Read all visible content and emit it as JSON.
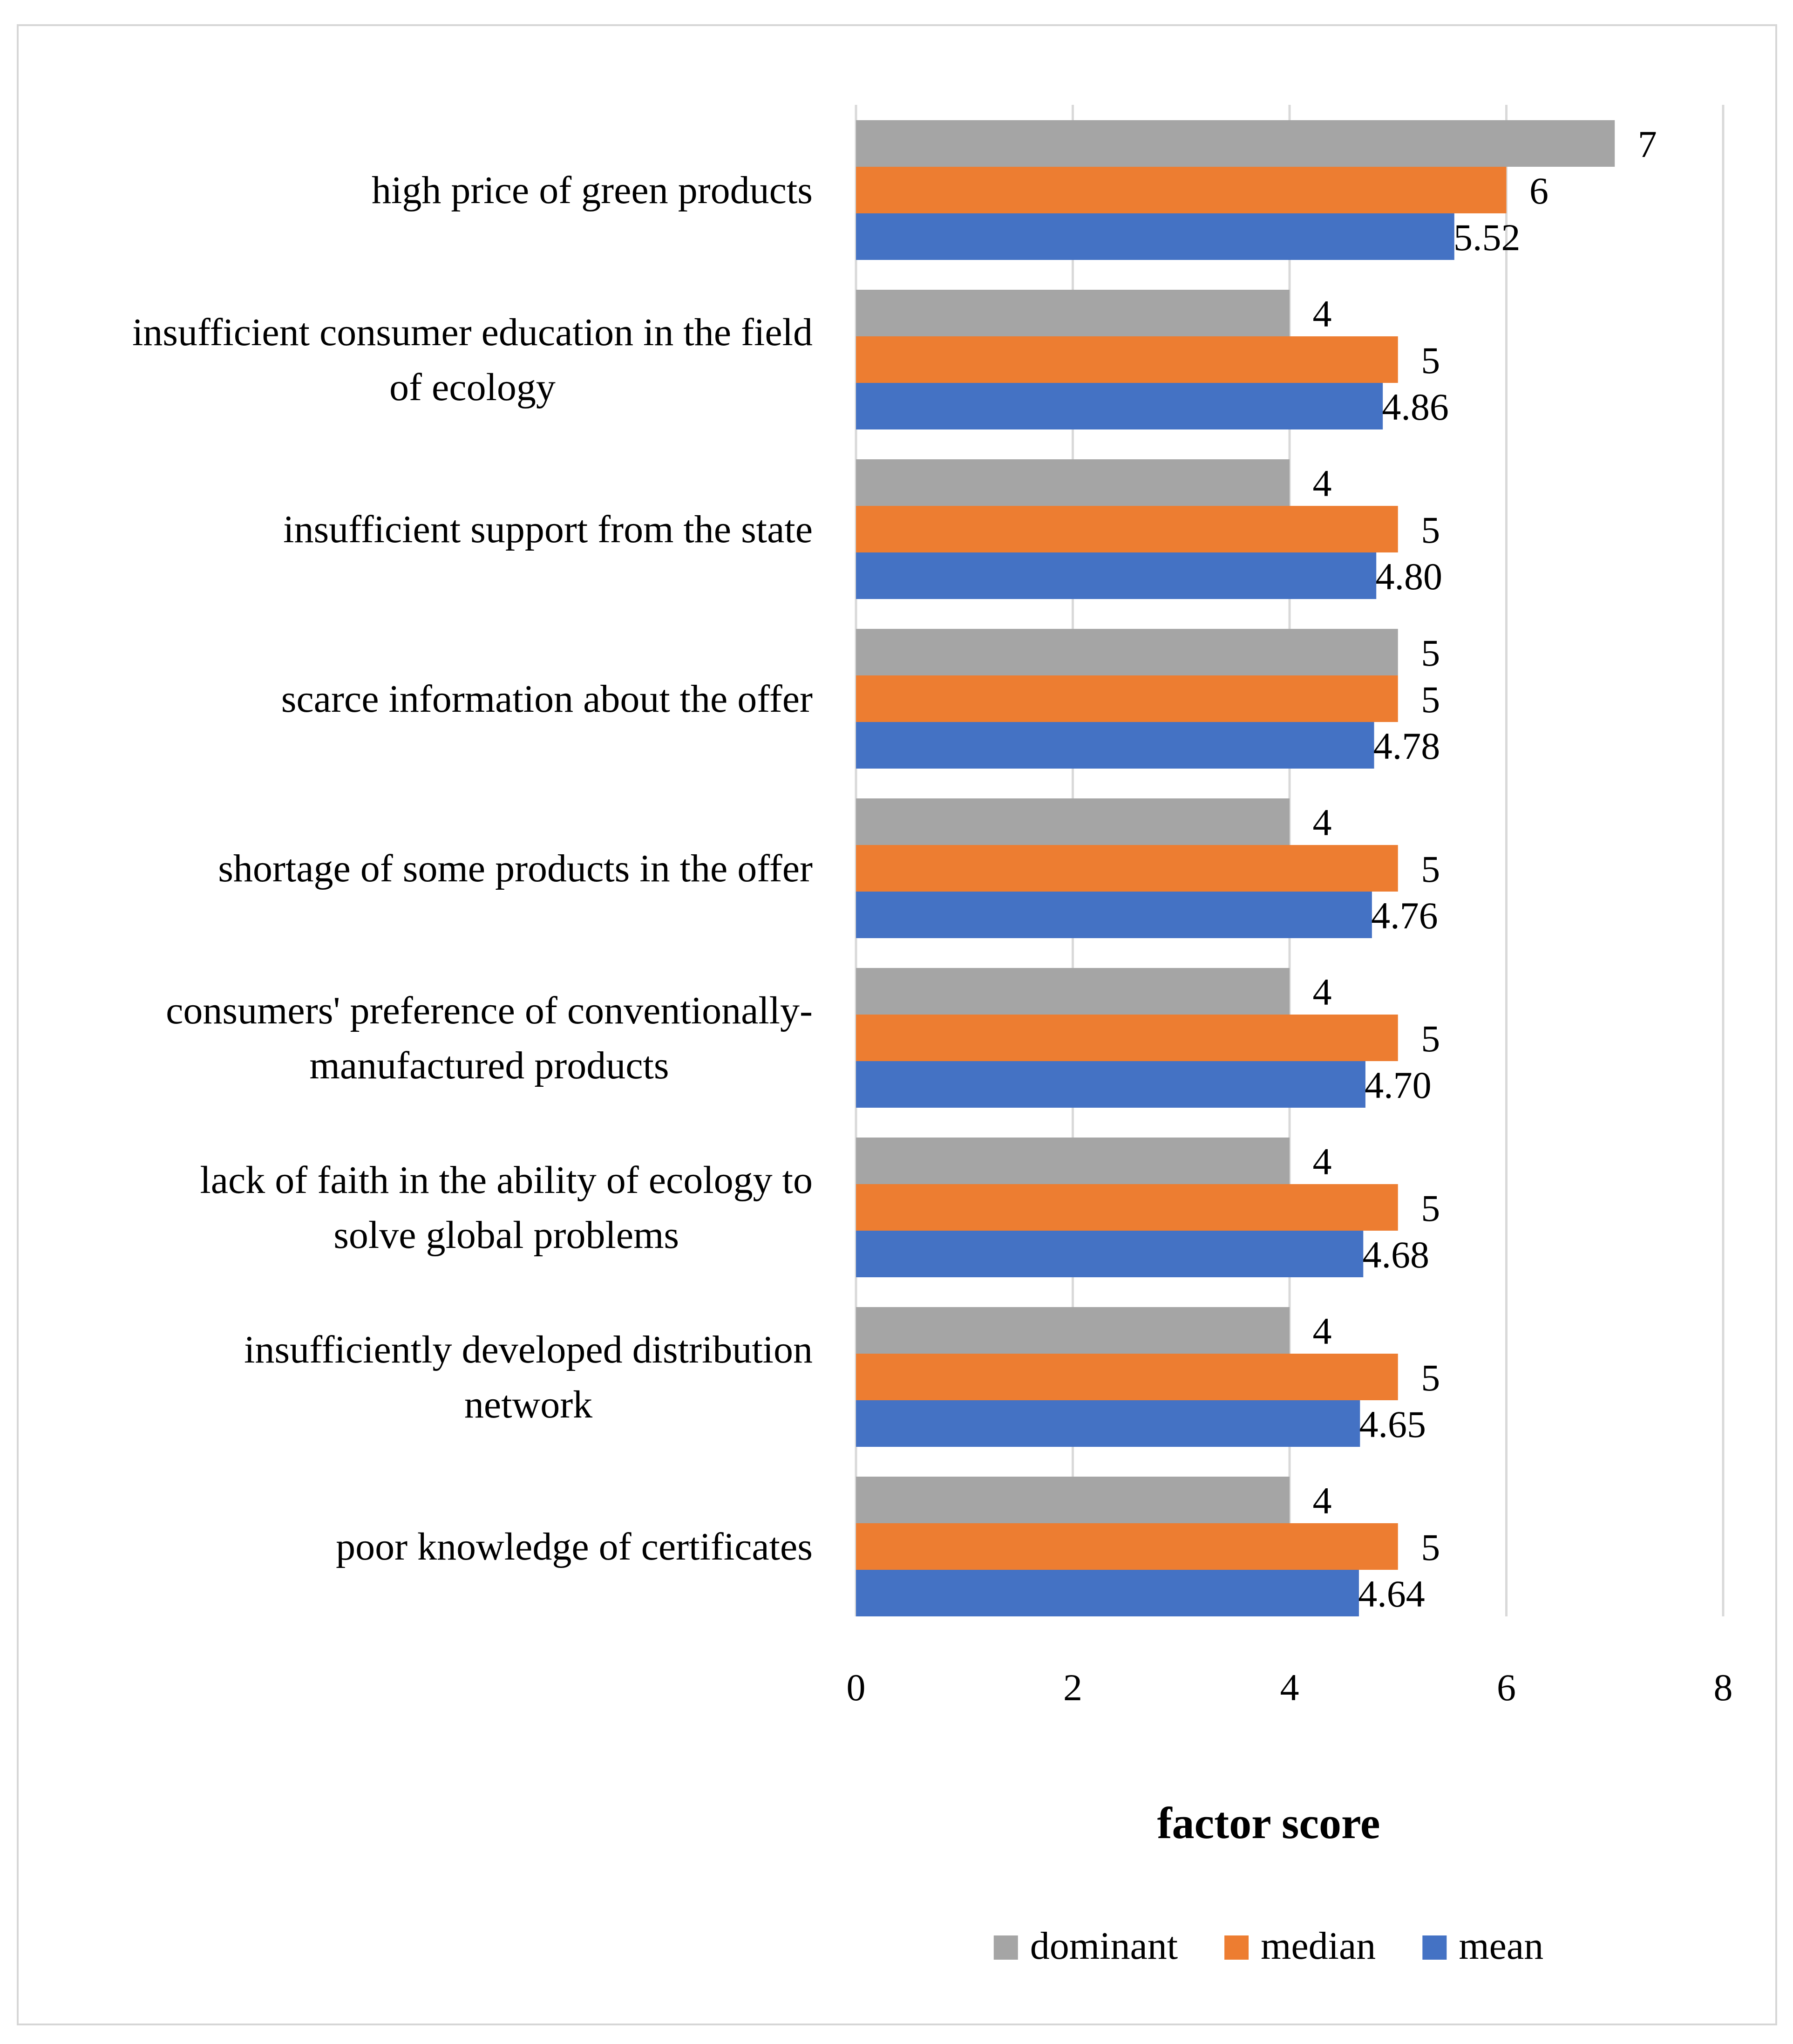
{
  "chart_data": {
    "type": "bar",
    "orientation": "horizontal",
    "categories": [
      "high price of green products",
      "insufficient consumer education in the field of ecology",
      "insufficient support from the state",
      "scarce information about the offer",
      "shortage of some products in the offer",
      "consumers' preference of conventionally-manufactured products",
      "lack of faith in the ability of ecology to solve global problems",
      "insufficiently developed distribution network",
      "poor knowledge of certificates"
    ],
    "category_lines": [
      [
        "high price of green products"
      ],
      [
        "insufficient consumer education in the field",
        "of ecology"
      ],
      [
        "insufficient support from the state"
      ],
      [
        "scarce information about the offer"
      ],
      [
        "shortage of some products in the offer"
      ],
      [
        "consumers' preference of conventionally-",
        "manufactured products"
      ],
      [
        "lack of faith in the ability of ecology to",
        "solve global problems"
      ],
      [
        "insufficiently developed distribution",
        "network"
      ],
      [
        "poor knowledge of certificates"
      ]
    ],
    "series": [
      {
        "name": "dominant",
        "color": "#a5a5a5",
        "values": [
          7,
          4,
          4,
          5,
          4,
          4,
          4,
          4,
          4
        ],
        "labels": [
          "7",
          "4",
          "4",
          "5",
          "4",
          "4",
          "4",
          "4",
          "4"
        ]
      },
      {
        "name": "median",
        "color": "#ed7d31",
        "values": [
          6,
          5,
          5,
          5,
          5,
          5,
          5,
          5,
          5
        ],
        "labels": [
          "6",
          "5",
          "5",
          "5",
          "5",
          "5",
          "5",
          "5",
          "5"
        ]
      },
      {
        "name": "mean",
        "color": "#4472c4",
        "values": [
          5.52,
          4.86,
          4.8,
          4.78,
          4.76,
          4.7,
          4.68,
          4.65,
          4.64
        ],
        "labels": [
          "5.52",
          "4.86",
          "4.80",
          "4.78",
          "4.76",
          "4.70",
          "4.68",
          "4.65",
          "4.64"
        ]
      }
    ],
    "xlim": [
      0,
      8
    ],
    "xticks": [
      "0",
      "2",
      "4",
      "6",
      "8"
    ],
    "xlabel": "factor score",
    "grid": true,
    "legend_position": "bottom",
    "gridline_color": "#d9d9d9"
  }
}
